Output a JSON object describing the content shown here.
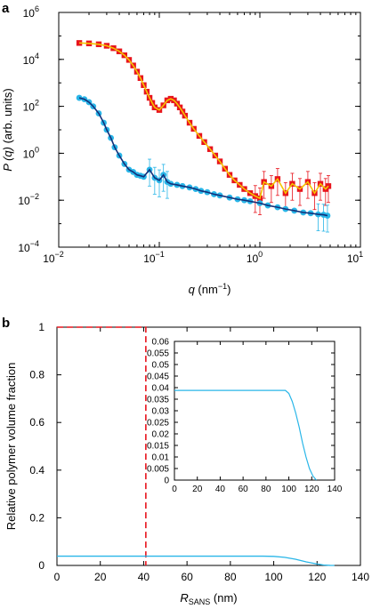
{
  "chart_data": [
    {
      "panel": "a",
      "type": "scatter",
      "xscale": "log",
      "yscale": "log",
      "xlabel": {
        "main": "q",
        "unit": " (nm",
        "unit_sup": "−1",
        "close": ")"
      },
      "ylabel": {
        "main": "P",
        "arg": " (q)",
        "rest": " (arb. units)"
      },
      "xlim": [
        0.01,
        10
      ],
      "ylim": [
        0.0001,
        1000000
      ],
      "xticks": [
        {
          "value": 0.01,
          "base": "10",
          "exp": "−2"
        },
        {
          "value": 0.1,
          "base": "10",
          "exp": "−1"
        },
        {
          "value": 1,
          "base": "10",
          "exp": "0"
        },
        {
          "value": 10,
          "base": "10",
          "exp": "1"
        }
      ],
      "yticks": [
        {
          "value": 0.0001,
          "base": "10",
          "exp": "−4"
        },
        {
          "value": 0.01,
          "base": "10",
          "exp": "−2"
        },
        {
          "value": 1,
          "base": "10",
          "exp": "0"
        },
        {
          "value": 100,
          "base": "10",
          "exp": "2"
        },
        {
          "value": 10000,
          "base": "10",
          "exp": "4"
        },
        {
          "value": 1000000,
          "base": "10",
          "exp": "6"
        }
      ],
      "series": [
        {
          "marker": "square",
          "color": "#e8141c",
          "fit_color": "#f5c400",
          "x": [
            0.016,
            0.02,
            0.025,
            0.03,
            0.035,
            0.04,
            0.045,
            0.05,
            0.055,
            0.06,
            0.065,
            0.07,
            0.075,
            0.08,
            0.085,
            0.09,
            0.1,
            0.11,
            0.12,
            0.13,
            0.14,
            0.15,
            0.16,
            0.17,
            0.18,
            0.2,
            0.22,
            0.25,
            0.28,
            0.32,
            0.36,
            0.4,
            0.45,
            0.5,
            0.56,
            0.63,
            0.7,
            0.8,
            0.9,
            1.0,
            1.1,
            1.3,
            1.5,
            1.8,
            2.1,
            2.5,
            3.0,
            3.5,
            4.0,
            4.5,
            4.8
          ],
          "y": [
            50000,
            48000,
            44000,
            38000,
            30000,
            22000,
            15000,
            9500,
            5500,
            3000,
            1600,
            800,
            420,
            230,
            140,
            90,
            70,
            110,
            180,
            210,
            180,
            130,
            90,
            60,
            40,
            20,
            11,
            5.5,
            3.0,
            1.5,
            0.8,
            0.45,
            0.22,
            0.12,
            0.07,
            0.045,
            0.03,
            0.02,
            0.015,
            0.012,
            0.06,
            0.04,
            0.08,
            0.02,
            0.05,
            0.03,
            0.06,
            0.02,
            0.05,
            0.03,
            0.04
          ]
        },
        {
          "marker": "circle",
          "color": "#29b6e8",
          "fit_color": "#12307a",
          "x": [
            0.016,
            0.018,
            0.02,
            0.022,
            0.025,
            0.028,
            0.03,
            0.033,
            0.036,
            0.04,
            0.045,
            0.05,
            0.055,
            0.06,
            0.065,
            0.07,
            0.08,
            0.09,
            0.1,
            0.11,
            0.12,
            0.13,
            0.15,
            0.17,
            0.2,
            0.23,
            0.26,
            0.3,
            0.35,
            0.4,
            0.5,
            0.6,
            0.7,
            0.8,
            1.0,
            1.2,
            1.5,
            1.8,
            2.2,
            2.7,
            3.2,
            3.8,
            4.3,
            4.7
          ],
          "y": [
            230,
            200,
            150,
            100,
            50,
            20,
            10,
            4.5,
            1.8,
            0.8,
            0.35,
            0.2,
            0.16,
            0.12,
            0.11,
            0.1,
            0.2,
            0.09,
            0.07,
            0.12,
            0.06,
            0.05,
            0.045,
            0.04,
            0.035,
            0.03,
            0.025,
            0.022,
            0.018,
            0.016,
            0.013,
            0.011,
            0.01,
            0.009,
            0.0075,
            0.006,
            0.005,
            0.0042,
            0.0036,
            0.003,
            0.0028,
            0.0025,
            0.0024,
            0.0022
          ]
        }
      ]
    },
    {
      "panel": "b",
      "type": "line",
      "xlabel": {
        "main": "R",
        "sub": "SANS",
        "rest": " (nm)"
      },
      "ylabel": "Relative polymer volume fraction",
      "xlim": [
        0,
        140
      ],
      "ylim": [
        0,
        1
      ],
      "xticks": [
        "0",
        "20",
        "40",
        "60",
        "80",
        "100",
        "120",
        "140"
      ],
      "yticks": [
        "0",
        "0.2",
        "0.4",
        "0.6",
        "0.8",
        "1"
      ],
      "series": [
        {
          "style": "dashed",
          "color": "#e8141c",
          "x": [
            0,
            41,
            41
          ],
          "y": [
            1,
            1,
            0
          ]
        },
        {
          "style": "solid",
          "color": "#29b6e8",
          "x": [
            0,
            20,
            40,
            60,
            80,
            95,
            100,
            105,
            110,
            115,
            120,
            123,
            126,
            128
          ],
          "y": [
            0.039,
            0.039,
            0.039,
            0.039,
            0.039,
            0.039,
            0.038,
            0.034,
            0.026,
            0.015,
            0.006,
            0.002,
            0.0003,
            0
          ]
        }
      ],
      "inset": {
        "xlim": [
          0,
          140
        ],
        "ylim": [
          0,
          0.06
        ],
        "xticks": [
          "0",
          "20",
          "40",
          "60",
          "80",
          "100",
          "120",
          "140"
        ],
        "yticks": [
          "0",
          "0.005",
          "0.01",
          "0.015",
          "0.02",
          "0.025",
          "0.03",
          "0.035",
          "0.04",
          "0.045",
          "0.05",
          "0.055",
          "0.06"
        ],
        "series": [
          {
            "style": "solid",
            "color": "#29b6e8",
            "x": [
              0,
              20,
              40,
              60,
              80,
              97,
              100,
              103,
              106,
              109,
              112,
              115,
              118,
              121,
              124
            ],
            "y": [
              0.0388,
              0.0388,
              0.0388,
              0.0388,
              0.0388,
              0.0388,
              0.0375,
              0.034,
              0.029,
              0.023,
              0.016,
              0.01,
              0.005,
              0.0018,
              0
            ]
          }
        ]
      }
    }
  ]
}
